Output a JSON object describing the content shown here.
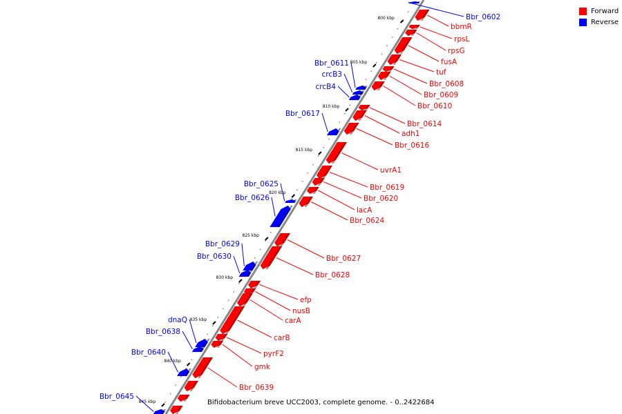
{
  "legend": [
    {
      "label": "Forward",
      "color": "#ff0000"
    },
    {
      "label": "Reverse",
      "color": "#0000ff"
    }
  ],
  "caption": "Bifidobacterium breve UCC2003, complete genome. - 0..2422684",
  "colors": {
    "forward": "#ff0000",
    "reverse": "#0000ff",
    "axis": "#888888",
    "tick": "#000000"
  },
  "ticks": [
    {
      "label": "800 kbp",
      "kbp": 800
    },
    {
      "label": "805 kbp",
      "kbp": 805
    },
    {
      "label": "810 kbp",
      "kbp": 810
    },
    {
      "label": "815 kbp",
      "kbp": 815
    },
    {
      "label": "820 kbp",
      "kbp": 820
    },
    {
      "label": "825 kbp",
      "kbp": 825
    },
    {
      "label": "830 kbp",
      "kbp": 830
    },
    {
      "label": "835 kbp",
      "kbp": 835
    },
    {
      "label": "840 kbp",
      "kbp": 840
    },
    {
      "label": "845 kbp",
      "kbp": 845
    }
  ],
  "genes": [
    {
      "label": "Bbr_0602",
      "strand": "reverse"
    },
    {
      "label": "bbmR",
      "strand": "forward"
    },
    {
      "label": "rpsL",
      "strand": "forward"
    },
    {
      "label": "rpsG",
      "strand": "forward"
    },
    {
      "label": "fusA",
      "strand": "forward"
    },
    {
      "label": "tuf",
      "strand": "forward"
    },
    {
      "label": "Bbr_0608",
      "strand": "forward"
    },
    {
      "label": "Bbr_0609",
      "strand": "forward"
    },
    {
      "label": "Bbr_0610",
      "strand": "forward"
    },
    {
      "label": "Bbr_0611",
      "strand": "reverse"
    },
    {
      "label": "crcB3",
      "strand": "reverse"
    },
    {
      "label": "crcB4",
      "strand": "reverse"
    },
    {
      "label": "Bbr_0614",
      "strand": "forward"
    },
    {
      "label": "adh1",
      "strand": "forward"
    },
    {
      "label": "Bbr_0616",
      "strand": "forward"
    },
    {
      "label": "Bbr_0617",
      "strand": "reverse"
    },
    {
      "label": "uvrA1",
      "strand": "forward"
    },
    {
      "label": "Bbr_0619",
      "strand": "forward"
    },
    {
      "label": "Bbr_0620",
      "strand": "forward"
    },
    {
      "label": "lacA",
      "strand": "forward"
    },
    {
      "label": "Bbr_0624",
      "strand": "forward"
    },
    {
      "label": "Bbr_0625",
      "strand": "reverse"
    },
    {
      "label": "Bbr_0626",
      "strand": "reverse"
    },
    {
      "label": "Bbr_0627",
      "strand": "forward"
    },
    {
      "label": "Bbr_0628",
      "strand": "forward"
    },
    {
      "label": "Bbr_0629",
      "strand": "reverse"
    },
    {
      "label": "Bbr_0630",
      "strand": "reverse"
    },
    {
      "label": "efp",
      "strand": "forward"
    },
    {
      "label": "nusB",
      "strand": "forward"
    },
    {
      "label": "carA",
      "strand": "forward"
    },
    {
      "label": "carB",
      "strand": "forward"
    },
    {
      "label": "pyrF2",
      "strand": "forward"
    },
    {
      "label": "gmk",
      "strand": "forward"
    },
    {
      "label": "dnaQ",
      "strand": "reverse"
    },
    {
      "label": "Bbr_0638",
      "strand": "reverse"
    },
    {
      "label": "Bbr_0640",
      "strand": "reverse"
    },
    {
      "label": "Bbr_0639",
      "strand": "forward"
    },
    {
      "label": "Bbr_0645",
      "strand": "reverse"
    }
  ]
}
